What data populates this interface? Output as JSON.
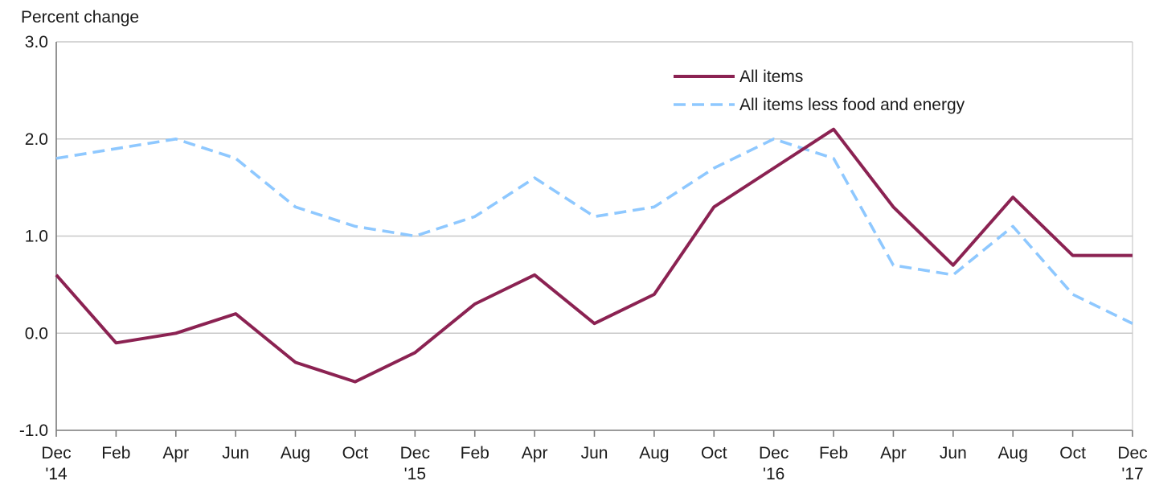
{
  "chart_data": {
    "type": "line",
    "ylabel": "Percent change",
    "ylim": [
      -1.0,
      3.0
    ],
    "yticks": [
      "-1.0",
      "0.0",
      "1.0",
      "2.0",
      "3.0"
    ],
    "grid": "horizontal",
    "legend_position": "top-right",
    "x": [
      "Dec 2014",
      "Feb 2015",
      "Apr 2015",
      "Jun 2015",
      "Aug 2015",
      "Oct 2015",
      "Dec 2015",
      "Feb 2016",
      "Apr 2016",
      "Jun 2016",
      "Aug 2016",
      "Oct 2016",
      "Dec 2016",
      "Feb 2017",
      "Apr 2017",
      "Jun 2017",
      "Aug 2017",
      "Oct 2017",
      "Dec 2017"
    ],
    "xtick_labels": [
      {
        "month": "Dec",
        "year": "'14"
      },
      {
        "month": "Feb",
        "year": ""
      },
      {
        "month": "Apr",
        "year": ""
      },
      {
        "month": "Jun",
        "year": ""
      },
      {
        "month": "Aug",
        "year": ""
      },
      {
        "month": "Oct",
        "year": ""
      },
      {
        "month": "Dec",
        "year": "'15"
      },
      {
        "month": "Feb",
        "year": ""
      },
      {
        "month": "Apr",
        "year": ""
      },
      {
        "month": "Jun",
        "year": ""
      },
      {
        "month": "Aug",
        "year": ""
      },
      {
        "month": "Oct",
        "year": ""
      },
      {
        "month": "Dec",
        "year": "'16"
      },
      {
        "month": "Feb",
        "year": ""
      },
      {
        "month": "Apr",
        "year": ""
      },
      {
        "month": "Jun",
        "year": ""
      },
      {
        "month": "Aug",
        "year": ""
      },
      {
        "month": "Oct",
        "year": ""
      },
      {
        "month": "Dec",
        "year": "'17"
      }
    ],
    "series": [
      {
        "name": "All items",
        "color": "#8b2252",
        "style": "solid",
        "values": [
          0.6,
          -0.1,
          0.0,
          0.2,
          -0.3,
          -0.5,
          -0.2,
          0.3,
          0.6,
          0.1,
          0.4,
          1.3,
          1.7,
          2.1,
          1.3,
          0.7,
          1.4,
          0.8,
          0.8
        ]
      },
      {
        "name": "All items less food and energy",
        "color": "#8ec8ff",
        "style": "dashed",
        "values": [
          1.8,
          1.9,
          2.0,
          1.8,
          1.3,
          1.1,
          1.0,
          1.2,
          1.6,
          1.2,
          1.3,
          1.7,
          2.0,
          1.8,
          0.7,
          0.6,
          1.1,
          0.4,
          0.1
        ]
      }
    ]
  }
}
